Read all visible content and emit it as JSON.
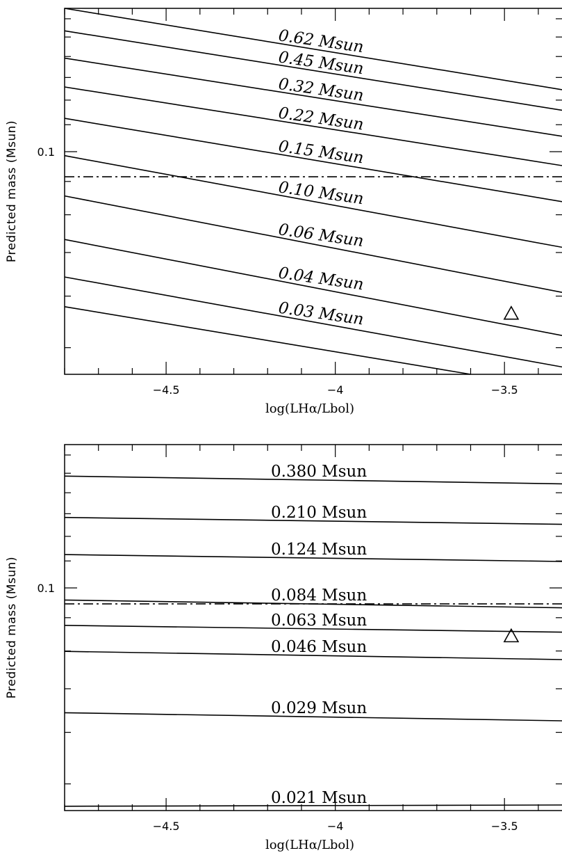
{
  "chart_data": [
    {
      "type": "line",
      "xlabel": "log(LHα/Lbol)",
      "ylabel": "Predicted mass (Msun)",
      "xlim": [
        -4.8,
        -3.33
      ],
      "ylim": [
        0.0455,
        0.166
      ],
      "yscale": "log",
      "x_ticks": [
        -4.5,
        -4,
        -3.5
      ],
      "x_tick_labels": [
        "−4.5",
        "−4",
        "−3.5"
      ],
      "y_ticks": [
        0.1
      ],
      "y_tick_labels": [
        "0.1"
      ],
      "label_style": "italic",
      "series": [
        {
          "name": "0.62  Msun",
          "x": [
            -4.8,
            -3.33
          ],
          "y": [
            0.166,
            0.1245
          ]
        },
        {
          "name": "0.45  Msun",
          "x": [
            -4.8,
            -3.33
          ],
          "y": [
            0.1533,
            0.1158
          ]
        },
        {
          "name": "0.32  Msun",
          "x": [
            -4.8,
            -3.33
          ],
          "y": [
            0.1392,
            0.1056
          ]
        },
        {
          "name": "0.22  Msun",
          "x": [
            -4.8,
            -3.33
          ],
          "y": [
            0.1257,
            0.0952
          ]
        },
        {
          "name": "0.15  Msun",
          "x": [
            -4.8,
            -3.33
          ],
          "y": [
            0.1125,
            0.0838
          ]
        },
        {
          "name": "0.10  Msun",
          "x": [
            -4.8,
            -3.33
          ],
          "y": [
            0.0986,
            0.0713
          ]
        },
        {
          "name": "0.06  Msun",
          "x": [
            -4.8,
            -3.33
          ],
          "y": [
            0.0855,
            0.0608
          ]
        },
        {
          "name": "0.04  Msun",
          "x": [
            -4.8,
            -3.33
          ],
          "y": [
            0.0733,
            0.0522
          ]
        },
        {
          "name": "0.03  Msun",
          "x": [
            -4.8,
            -3.33
          ],
          "y": [
            0.0642,
            0.0467
          ]
        },
        {
          "name": "",
          "x": [
            -4.8,
            -3.6
          ],
          "y": [
            0.0578,
            0.0455
          ]
        }
      ],
      "limit_line": {
        "y": 0.0915,
        "style": "dash-dot"
      },
      "points": [
        {
          "x": -3.48,
          "y": 0.0564,
          "marker": "triangle"
        }
      ]
    },
    {
      "type": "line",
      "xlabel": "log(LHα/Lbol)",
      "ylabel": "Predicted mass (Msun)",
      "xlim": [
        -4.8,
        -3.33
      ],
      "ylim": [
        0.0455,
        0.166
      ],
      "yscale": "log",
      "x_ticks": [
        -4.5,
        -4,
        -3.5
      ],
      "x_tick_labels": [
        "−4.5",
        "−4",
        "−3.5"
      ],
      "y_ticks": [
        0.1
      ],
      "y_tick_labels": [
        "0.1"
      ],
      "label_style": "upright",
      "series": [
        {
          "name": "0.380  Msun",
          "x": [
            -4.8,
            -3.33
          ],
          "y": [
            0.1485,
            0.1445
          ]
        },
        {
          "name": "0.210  Msun",
          "x": [
            -4.8,
            -3.33
          ],
          "y": [
            0.1283,
            0.1252
          ]
        },
        {
          "name": "0.124  Msun",
          "x": [
            -4.8,
            -3.33
          ],
          "y": [
            0.1125,
            0.1098
          ]
        },
        {
          "name": "0.084  Msun",
          "x": [
            -4.8,
            -3.33
          ],
          "y": [
            0.0958,
            0.0932
          ]
        },
        {
          "name": "0.063  Msun",
          "x": [
            -4.8,
            -3.33
          ],
          "y": [
            0.0876,
            0.0855
          ]
        },
        {
          "name": "0.046  Msun",
          "x": [
            -4.8,
            -3.33
          ],
          "y": [
            0.0799,
            0.0776
          ]
        },
        {
          "name": "0.029  Msun",
          "x": [
            -4.8,
            -3.33
          ],
          "y": [
            0.0643,
            0.0625
          ]
        },
        {
          "name": "0.021  Msun",
          "x": [
            -4.8,
            -3.33
          ],
          "y": [
            0.0462,
            0.0464
          ]
        }
      ],
      "limit_line": {
        "y": 0.0945,
        "style": "dash-dot"
      },
      "points": [
        {
          "x": -3.48,
          "y": 0.0843,
          "marker": "triangle"
        }
      ]
    }
  ]
}
